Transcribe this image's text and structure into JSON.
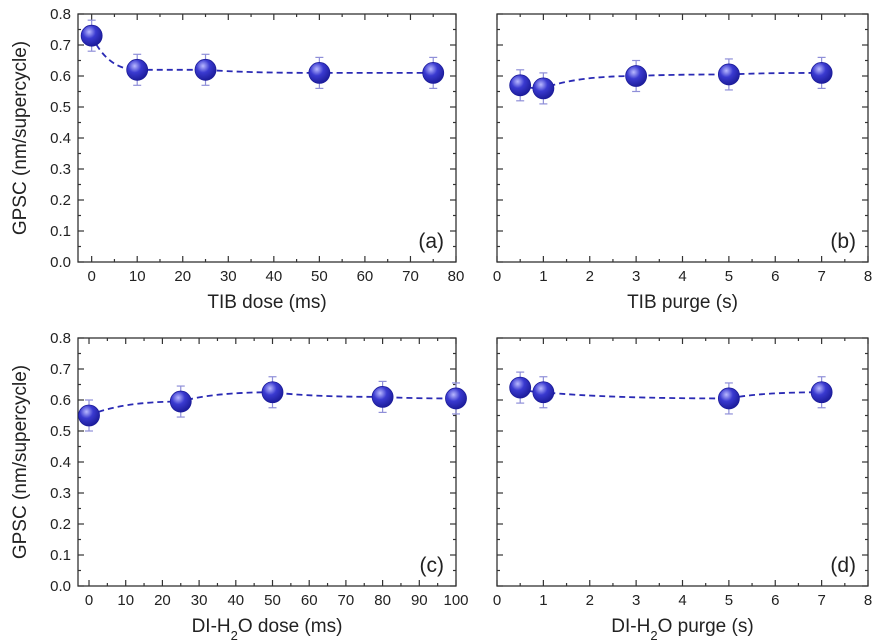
{
  "colors": {
    "marker": "#1c1c9a",
    "marker_highlight": "#b9b9ff",
    "fit_line": "#2a2ab4",
    "error_bar": "#8f8fd8"
  },
  "chart_data": [
    {
      "type": "scatter",
      "panel": "(a)",
      "xlabel": "TIB dose (ms)",
      "ylabel": "GPSC (nm/supercycle)",
      "xlim": [
        -3,
        80
      ],
      "ylim": [
        0,
        0.8
      ],
      "xticks": [
        0,
        10,
        20,
        30,
        40,
        50,
        60,
        70,
        80
      ],
      "yticks": [
        0.0,
        0.1,
        0.2,
        0.3,
        0.4,
        0.5,
        0.6,
        0.7,
        0.8
      ],
      "x": [
        0,
        10,
        25,
        50,
        75
      ],
      "y": [
        0.73,
        0.62,
        0.62,
        0.61,
        0.61
      ],
      "error": [
        0.05,
        0.05,
        0.05,
        0.05,
        0.05
      ],
      "fit_line": "dashed"
    },
    {
      "type": "scatter",
      "panel": "(b)",
      "xlabel": "TIB purge (s)",
      "ylabel": "",
      "xlim": [
        0,
        8
      ],
      "ylim": [
        0,
        0.8
      ],
      "xticks": [
        0,
        1,
        2,
        3,
        4,
        5,
        6,
        7,
        8
      ],
      "yticks": [
        0.0,
        0.1,
        0.2,
        0.3,
        0.4,
        0.5,
        0.6,
        0.7,
        0.8
      ],
      "x": [
        0.5,
        1,
        3,
        5,
        7
      ],
      "y": [
        0.57,
        0.56,
        0.6,
        0.605,
        0.61
      ],
      "error": [
        0.05,
        0.05,
        0.05,
        0.05,
        0.05
      ],
      "fit_line": "dashed"
    },
    {
      "type": "scatter",
      "panel": "(c)",
      "xlabel": "DI-H2O dose (ms)",
      "ylabel": "GPSC (nm/supercycle)",
      "xlim": [
        -3,
        100
      ],
      "ylim": [
        0,
        0.8
      ],
      "xticks": [
        0,
        10,
        20,
        30,
        40,
        50,
        60,
        70,
        80,
        90,
        100
      ],
      "yticks": [
        0.0,
        0.1,
        0.2,
        0.3,
        0.4,
        0.5,
        0.6,
        0.7,
        0.8
      ],
      "x": [
        0,
        25,
        50,
        80,
        100
      ],
      "y": [
        0.55,
        0.595,
        0.625,
        0.61,
        0.605
      ],
      "error": [
        0.05,
        0.05,
        0.05,
        0.05,
        0.05
      ],
      "fit_line": "dashed"
    },
    {
      "type": "scatter",
      "panel": "(d)",
      "xlabel": "DI-H2O purge (s)",
      "ylabel": "",
      "xlim": [
        0,
        8
      ],
      "ylim": [
        0,
        0.8
      ],
      "xticks": [
        0,
        1,
        2,
        3,
        4,
        5,
        6,
        7,
        8
      ],
      "yticks": [
        0.0,
        0.1,
        0.2,
        0.3,
        0.4,
        0.5,
        0.6,
        0.7,
        0.8
      ],
      "x": [
        0.5,
        1,
        5,
        7
      ],
      "y": [
        0.64,
        0.625,
        0.605,
        0.625
      ],
      "error": [
        0.05,
        0.05,
        0.05,
        0.05
      ],
      "fit_line": "dashed"
    }
  ]
}
